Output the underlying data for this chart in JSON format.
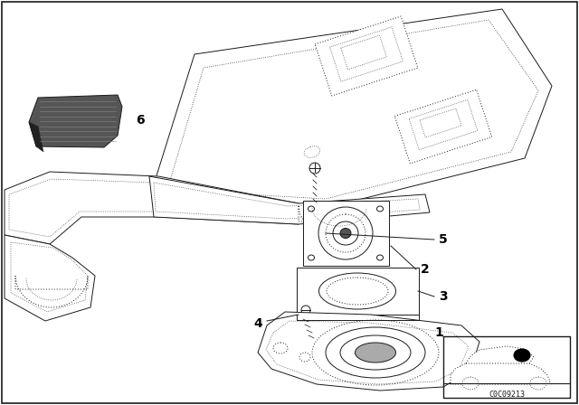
{
  "bg_color": "#ffffff",
  "line_color": "#1a1a1a",
  "diagram_code": "C0C09213",
  "fig_width": 6.4,
  "fig_height": 4.48,
  "dpi": 100,
  "border_lw": 1.2,
  "part_lw": 0.7
}
